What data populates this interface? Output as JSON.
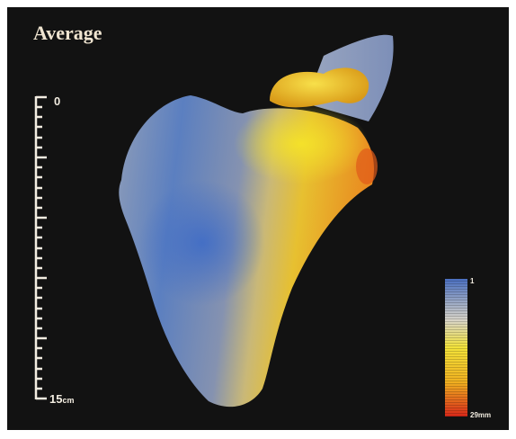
{
  "title": "Average",
  "ruler": {
    "top": "0",
    "bottom": "15",
    "unit": "cm"
  },
  "colorbar": {
    "top": "1",
    "bottom": "29mm"
  }
}
